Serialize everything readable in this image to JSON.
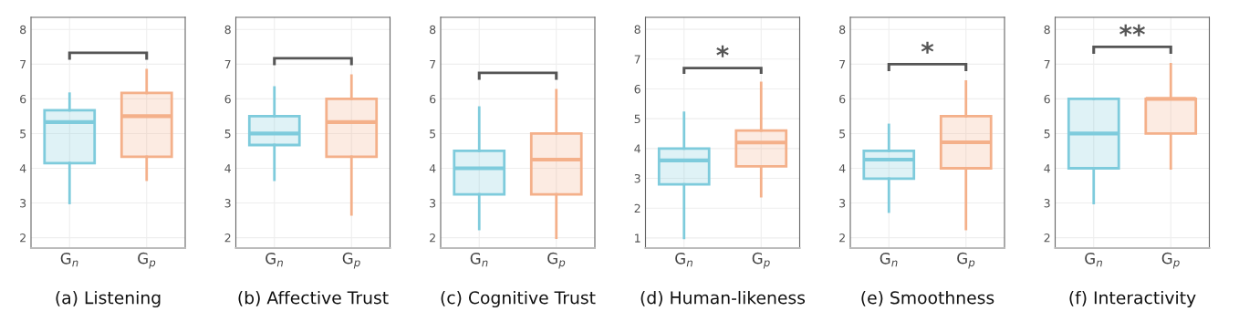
{
  "chart_data": [
    {
      "type": "box",
      "title": "(a) Listening",
      "categories": [
        "G$_{n}$",
        "G$_{p}$"
      ],
      "colors": [
        "#7ecbdc",
        "#f4b08a"
      ],
      "ylim": [
        1.7,
        8.35
      ],
      "yticks": [
        2,
        3,
        4,
        5,
        6,
        7,
        8
      ],
      "grid": true,
      "boxes": [
        {
          "low": 3.0,
          "q1": 4.15,
          "median": 5.33,
          "q3": 5.67,
          "high": 6.15
        },
        {
          "low": 3.67,
          "q1": 4.33,
          "median": 5.5,
          "q3": 6.17,
          "high": 6.83
        }
      ]
    },
    {
      "type": "box",
      "title": "(b) Affective Trust",
      "categories": [
        "G$_{n}$",
        "G$_{p}$"
      ],
      "colors": [
        "#7ecbdc",
        "#f4b08a"
      ],
      "ylim": [
        1.7,
        8.35
      ],
      "yticks": [
        2,
        3,
        4,
        5,
        6,
        7,
        8
      ],
      "grid": true,
      "boxes": [
        {
          "low": 3.67,
          "q1": 4.67,
          "median": 5.0,
          "q3": 5.5,
          "high": 6.33
        },
        {
          "low": 2.67,
          "q1": 4.33,
          "median": 5.33,
          "q3": 6.0,
          "high": 6.67
        }
      ]
    },
    {
      "type": "box",
      "title": "(c) Cognitive Trust",
      "categories": [
        "G$_{n}$",
        "G$_{p}$"
      ],
      "colors": [
        "#7ecbdc",
        "#f4b08a"
      ],
      "ylim": [
        1.7,
        8.35
      ],
      "yticks": [
        2,
        3,
        4,
        5,
        6,
        7,
        8
      ],
      "grid": true,
      "boxes": [
        {
          "low": 2.25,
          "q1": 3.25,
          "median": 4.0,
          "q3": 4.5,
          "high": 5.75
        },
        {
          "low": 2.0,
          "q1": 3.25,
          "median": 4.25,
          "q3": 5.0,
          "high": 6.25
        }
      ]
    },
    {
      "type": "box",
      "title": "(d) Human-likeness",
      "categories": [
        "G$_{n}$",
        "G$_{p}$"
      ],
      "colors": [
        "#7ecbdc",
        "#f4b08a"
      ],
      "ylim": [
        0.66,
        8.4
      ],
      "yticks": [
        1,
        2,
        3,
        4,
        5,
        6,
        7,
        8
      ],
      "grid": true,
      "annotations": [
        "*"
      ],
      "boxes": [
        {
          "low": 1.0,
          "q1": 2.8,
          "median": 3.6,
          "q3": 4.0,
          "high": 5.2
        },
        {
          "low": 2.4,
          "q1": 3.4,
          "median": 4.2,
          "q3": 4.6,
          "high": 6.2
        }
      ]
    },
    {
      "type": "box",
      "title": "(e) Smoothness",
      "categories": [
        "G$_{n}$",
        "G$_{p}$"
      ],
      "colors": [
        "#7ecbdc",
        "#f4b08a"
      ],
      "ylim": [
        1.7,
        8.35
      ],
      "yticks": [
        2,
        3,
        4,
        5,
        6,
        7,
        8
      ],
      "grid": true,
      "annotations": [
        "*"
      ],
      "boxes": [
        {
          "low": 2.75,
          "q1": 3.7,
          "median": 4.25,
          "q3": 4.5,
          "high": 5.25
        },
        {
          "low": 2.25,
          "q1": 4.0,
          "median": 4.75,
          "q3": 5.5,
          "high": 6.5
        }
      ]
    },
    {
      "type": "box",
      "title": "(f) Interactivity",
      "categories": [
        "G$_{n}$",
        "G$_{p}$"
      ],
      "colors": [
        "#7ecbdc",
        "#f4b08a"
      ],
      "ylim": [
        1.7,
        8.35
      ],
      "yticks": [
        2,
        3,
        4,
        5,
        6,
        7,
        8
      ],
      "grid": true,
      "annotations": [
        "**"
      ],
      "boxes": [
        {
          "low": 3.0,
          "q1": 4.0,
          "median": 5.0,
          "q3": 6.0,
          "high": 6.0
        },
        {
          "low": 4.0,
          "q1": 5.0,
          "median": 6.0,
          "q3": 6.0,
          "high": 7.0
        }
      ]
    }
  ]
}
